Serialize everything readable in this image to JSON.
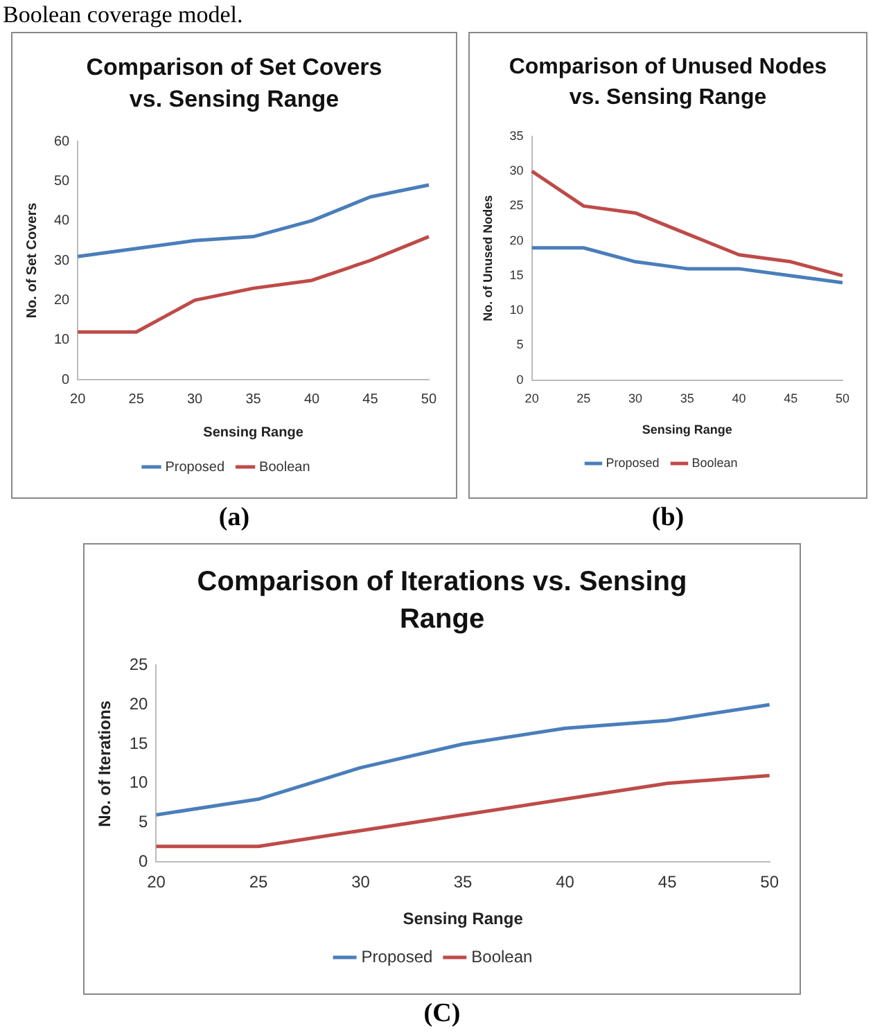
{
  "chart_data": [
    {
      "type": "line",
      "title": "Comparison of Set Covers vs. Sensing Range",
      "xlabel": "Sensing Range",
      "ylabel": "No. of Set Covers",
      "categories": [
        "20",
        "25",
        "30",
        "35",
        "40",
        "45",
        "50"
      ],
      "series": [
        {
          "name": "Proposed",
          "color": "#4a7ebb",
          "values": [
            31,
            33,
            35,
            36,
            40,
            46,
            49
          ]
        },
        {
          "name": "Boolean",
          "color": "#be4b48",
          "values": [
            12,
            12,
            20,
            23,
            25,
            30,
            36
          ]
        }
      ],
      "ylim": [
        0,
        60
      ],
      "yticks": [
        0,
        10,
        20,
        30,
        40,
        50,
        60
      ],
      "grid": false,
      "legend": "bottom",
      "marker": "none",
      "annotations": [
        "Boolean coverage model.",
        "(a)"
      ]
    },
    {
      "type": "line",
      "title": "Comparison of Unused Nodes vs. Sensing Range",
      "xlabel": "Sensing Range",
      "ylabel": "No. of Unused Nodes",
      "categories": [
        "20",
        "25",
        "30",
        "35",
        "40",
        "45",
        "50"
      ],
      "series": [
        {
          "name": "Proposed",
          "color": "#4a7ebb",
          "values": [
            19,
            19,
            17,
            16,
            16,
            15,
            14
          ]
        },
        {
          "name": "Boolean",
          "color": "#be4b48",
          "values": [
            30,
            25,
            24,
            21,
            18,
            17,
            15
          ]
        }
      ],
      "ylim": [
        0,
        35
      ],
      "yticks": [
        0,
        5,
        10,
        15,
        20,
        25,
        30,
        35
      ],
      "grid": false,
      "legend": "bottom",
      "marker": "none",
      "annotations": [
        "(b)"
      ]
    },
    {
      "type": "line",
      "title": "Comparison of Iterations vs. Sensing Range",
      "xlabel": "Sensing Range",
      "ylabel": "No. of Iterations",
      "categories": [
        "20",
        "25",
        "30",
        "35",
        "40",
        "45",
        "50"
      ],
      "series": [
        {
          "name": "Proposed",
          "color": "#4a7ebb",
          "values": [
            6,
            8,
            12,
            15,
            17,
            18,
            20
          ]
        },
        {
          "name": "Boolean",
          "color": "#be4b48",
          "values": [
            2,
            2,
            4,
            6,
            8,
            10,
            11
          ]
        }
      ],
      "ylim": [
        0,
        25
      ],
      "yticks": [
        0,
        5,
        10,
        15,
        20,
        25
      ],
      "grid": false,
      "legend": "bottom",
      "marker": "none",
      "annotations": [
        "(C)"
      ]
    }
  ]
}
